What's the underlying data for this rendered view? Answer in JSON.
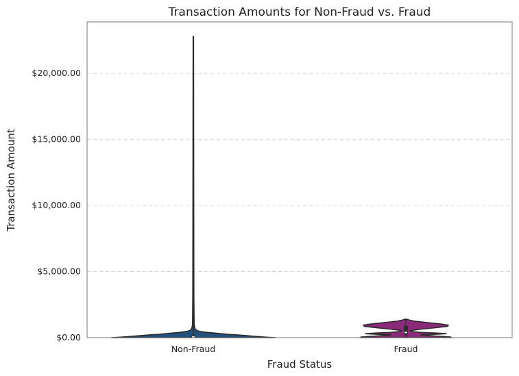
{
  "chart_data": {
    "type": "violin",
    "title": "Transaction Amounts for Non-Fraud vs. Fraud",
    "xlabel": "Fraud Status",
    "ylabel": "Transaction Amount",
    "categories": [
      "Non-Fraud",
      "Fraud"
    ],
    "ylim": [
      0,
      23900
    ],
    "yticks": [
      0,
      5000,
      10000,
      15000,
      20000
    ],
    "ytick_labels": [
      "$0.00",
      "$5,000.00",
      "$10,000.00",
      "$15,000.00",
      "$20,000.00"
    ],
    "grid": "y-dashed",
    "series": [
      {
        "category": "Non-Fraud",
        "color": "#23507c",
        "min": 0,
        "max": 22800,
        "q1": 10,
        "median": 45,
        "q3": 150,
        "profile": [
          [
            0,
            0.77
          ],
          [
            30,
            0.7
          ],
          [
            60,
            0.64
          ],
          [
            100,
            0.58
          ],
          [
            150,
            0.5
          ],
          [
            200,
            0.42
          ],
          [
            260,
            0.32
          ],
          [
            330,
            0.22
          ],
          [
            400,
            0.13
          ],
          [
            470,
            0.06
          ],
          [
            550,
            0.03
          ],
          [
            700,
            0.015
          ],
          [
            1000,
            0.008
          ],
          [
            3000,
            0.005
          ],
          [
            10000,
            0.004
          ],
          [
            22800,
            0.002
          ]
        ]
      },
      {
        "category": "Fraud",
        "color": "#8c2a7a",
        "min": 0,
        "max": 1400,
        "q1": 220,
        "median": 390,
        "q3": 900,
        "profile": [
          [
            0,
            0.43
          ],
          [
            50,
            0.42
          ],
          [
            100,
            0.33
          ],
          [
            150,
            0.22
          ],
          [
            200,
            0.14
          ],
          [
            250,
            0.26
          ],
          [
            300,
            0.38
          ],
          [
            350,
            0.28
          ],
          [
            400,
            0.14
          ],
          [
            450,
            0.07
          ],
          [
            500,
            0.04
          ],
          [
            560,
            0.06
          ],
          [
            650,
            0.15
          ],
          [
            750,
            0.28
          ],
          [
            850,
            0.39
          ],
          [
            950,
            0.4
          ],
          [
            1050,
            0.31
          ],
          [
            1150,
            0.19
          ],
          [
            1250,
            0.08
          ],
          [
            1330,
            0.03
          ],
          [
            1400,
            0.01
          ]
        ]
      }
    ]
  }
}
